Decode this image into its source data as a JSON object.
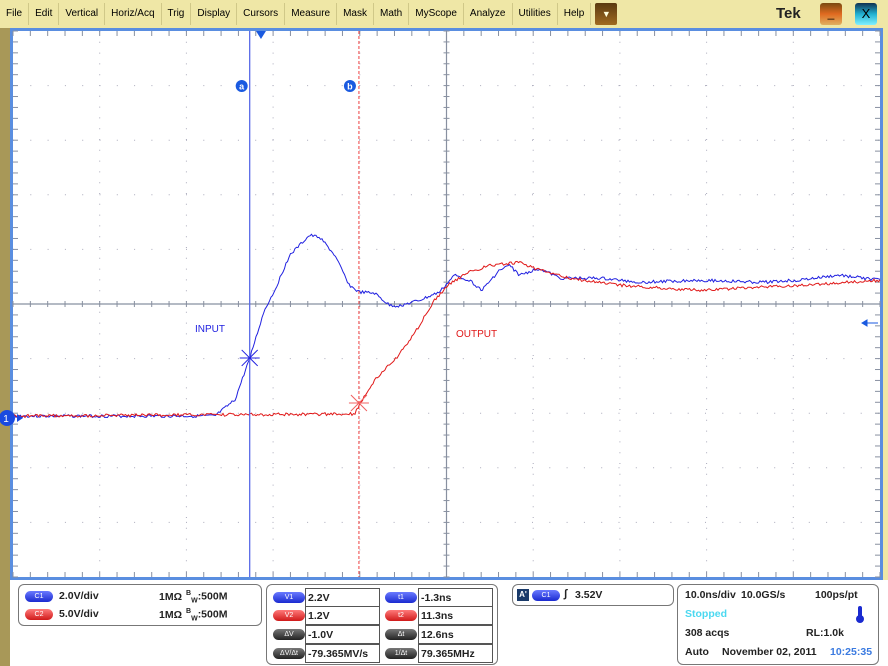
{
  "menu": {
    "items": [
      "File",
      "Edit",
      "Vertical",
      "Horiz/Acq",
      "Trig",
      "Display",
      "Cursors",
      "Measure",
      "Mask",
      "Math",
      "MyScope",
      "Analyze",
      "Utilities",
      "Help"
    ],
    "brand": "Tek",
    "minimize": "_",
    "close": "X",
    "dropdown": "▼"
  },
  "display": {
    "cursor_a_label": "a",
    "cursor_b_label": "b",
    "ch1_marker": "1",
    "input_label": "INPUT",
    "output_label": "OUTPUT"
  },
  "colors": {
    "ch1": "#2020e0",
    "ch2": "#e01818",
    "graticule": "#8890a0",
    "border": "#5a8ee0"
  },
  "chart_data": {
    "type": "line",
    "x_unit": "ns",
    "xlim": [
      -28.6,
      71.4
    ],
    "time_per_div": "10.0ns/div",
    "cursors": {
      "a_t": -1.3,
      "b_t": 11.3
    },
    "series": [
      {
        "name": "INPUT",
        "channel": "C1",
        "volts_per_div": 2.0,
        "t": [
          -28.6,
          -5.3,
          -3.0,
          -1.3,
          0.4,
          1.6,
          3.3,
          5.6,
          6.8,
          8.5,
          10.2,
          11.3,
          13.1,
          14.8,
          15.9,
          18.3,
          20.6,
          22.3,
          24.0,
          25.5,
          27.5,
          28.7,
          29.8,
          32.1,
          34.5,
          39.1,
          43.7,
          50.6,
          57.5,
          62.1,
          66.7,
          71.4
        ],
        "v": [
          0.07,
          0.07,
          0.66,
          2.19,
          3.95,
          4.68,
          5.96,
          6.69,
          6.62,
          5.96,
          4.86,
          4.61,
          4.57,
          4.13,
          4.1,
          4.31,
          4.61,
          5.23,
          5.05,
          4.68,
          5.41,
          5.59,
          5.23,
          5.48,
          5.12,
          5.12,
          4.97,
          5.05,
          4.97,
          5.05,
          5.23,
          5.05
        ]
      },
      {
        "name": "OUTPUT",
        "channel": "C2",
        "volts_per_div": 5.0,
        "t": [
          -28.6,
          10.8,
          11.3,
          13.1,
          15.9,
          18.3,
          20.0,
          21.8,
          24.0,
          26.4,
          29.8,
          32.1,
          35.6,
          41.4,
          50.6,
          62.1,
          71.4
        ],
        "v": [
          0.18,
          0.37,
          1.19,
          3.47,
          5.76,
          8.5,
          10.79,
          12.34,
          13.34,
          13.98,
          14.26,
          13.53,
          12.8,
          12.16,
          11.7,
          12.16,
          12.61
        ]
      }
    ]
  },
  "channels": [
    {
      "badge": "C1",
      "scale": "2.0V/div",
      "coupling": "1MΩ",
      "bw_prefix": "B",
      "bw_sub": "W",
      "bw": ":500M"
    },
    {
      "badge": "C2",
      "scale": "5.0V/div",
      "coupling": "1MΩ",
      "bw_prefix": "B",
      "bw_sub": "W",
      "bw": ":500M"
    }
  ],
  "cursors": {
    "v1_label": "V1",
    "v1": "2.2V",
    "v2_label": "V2",
    "v2": "1.2V",
    "dv_label": "ΔV",
    "dv": "-1.0V",
    "dvdt_label": "ΔV/Δt",
    "dvdt": "-79.365MV/s",
    "t1_label": "t1",
    "t1": "-1.3ns",
    "t2_label": "t2",
    "t2": "11.3ns",
    "dt_label": "Δt",
    "dt": "12.6ns",
    "inv_label": "1/Δt",
    "inv": "79.365MHz"
  },
  "trigger": {
    "mode_badge": "A'",
    "source": "C1",
    "slope": "∫",
    "level": "3.52V"
  },
  "horizontal": {
    "scale": "10.0ns/div",
    "rate": "10.0GS/s",
    "resolution": "100ps/pt",
    "state": "Stopped",
    "acqs": "308 acqs",
    "record_length": "RL:1.0k",
    "mode": "Auto",
    "date": "November 02, 2011",
    "time": "10:25:35"
  }
}
